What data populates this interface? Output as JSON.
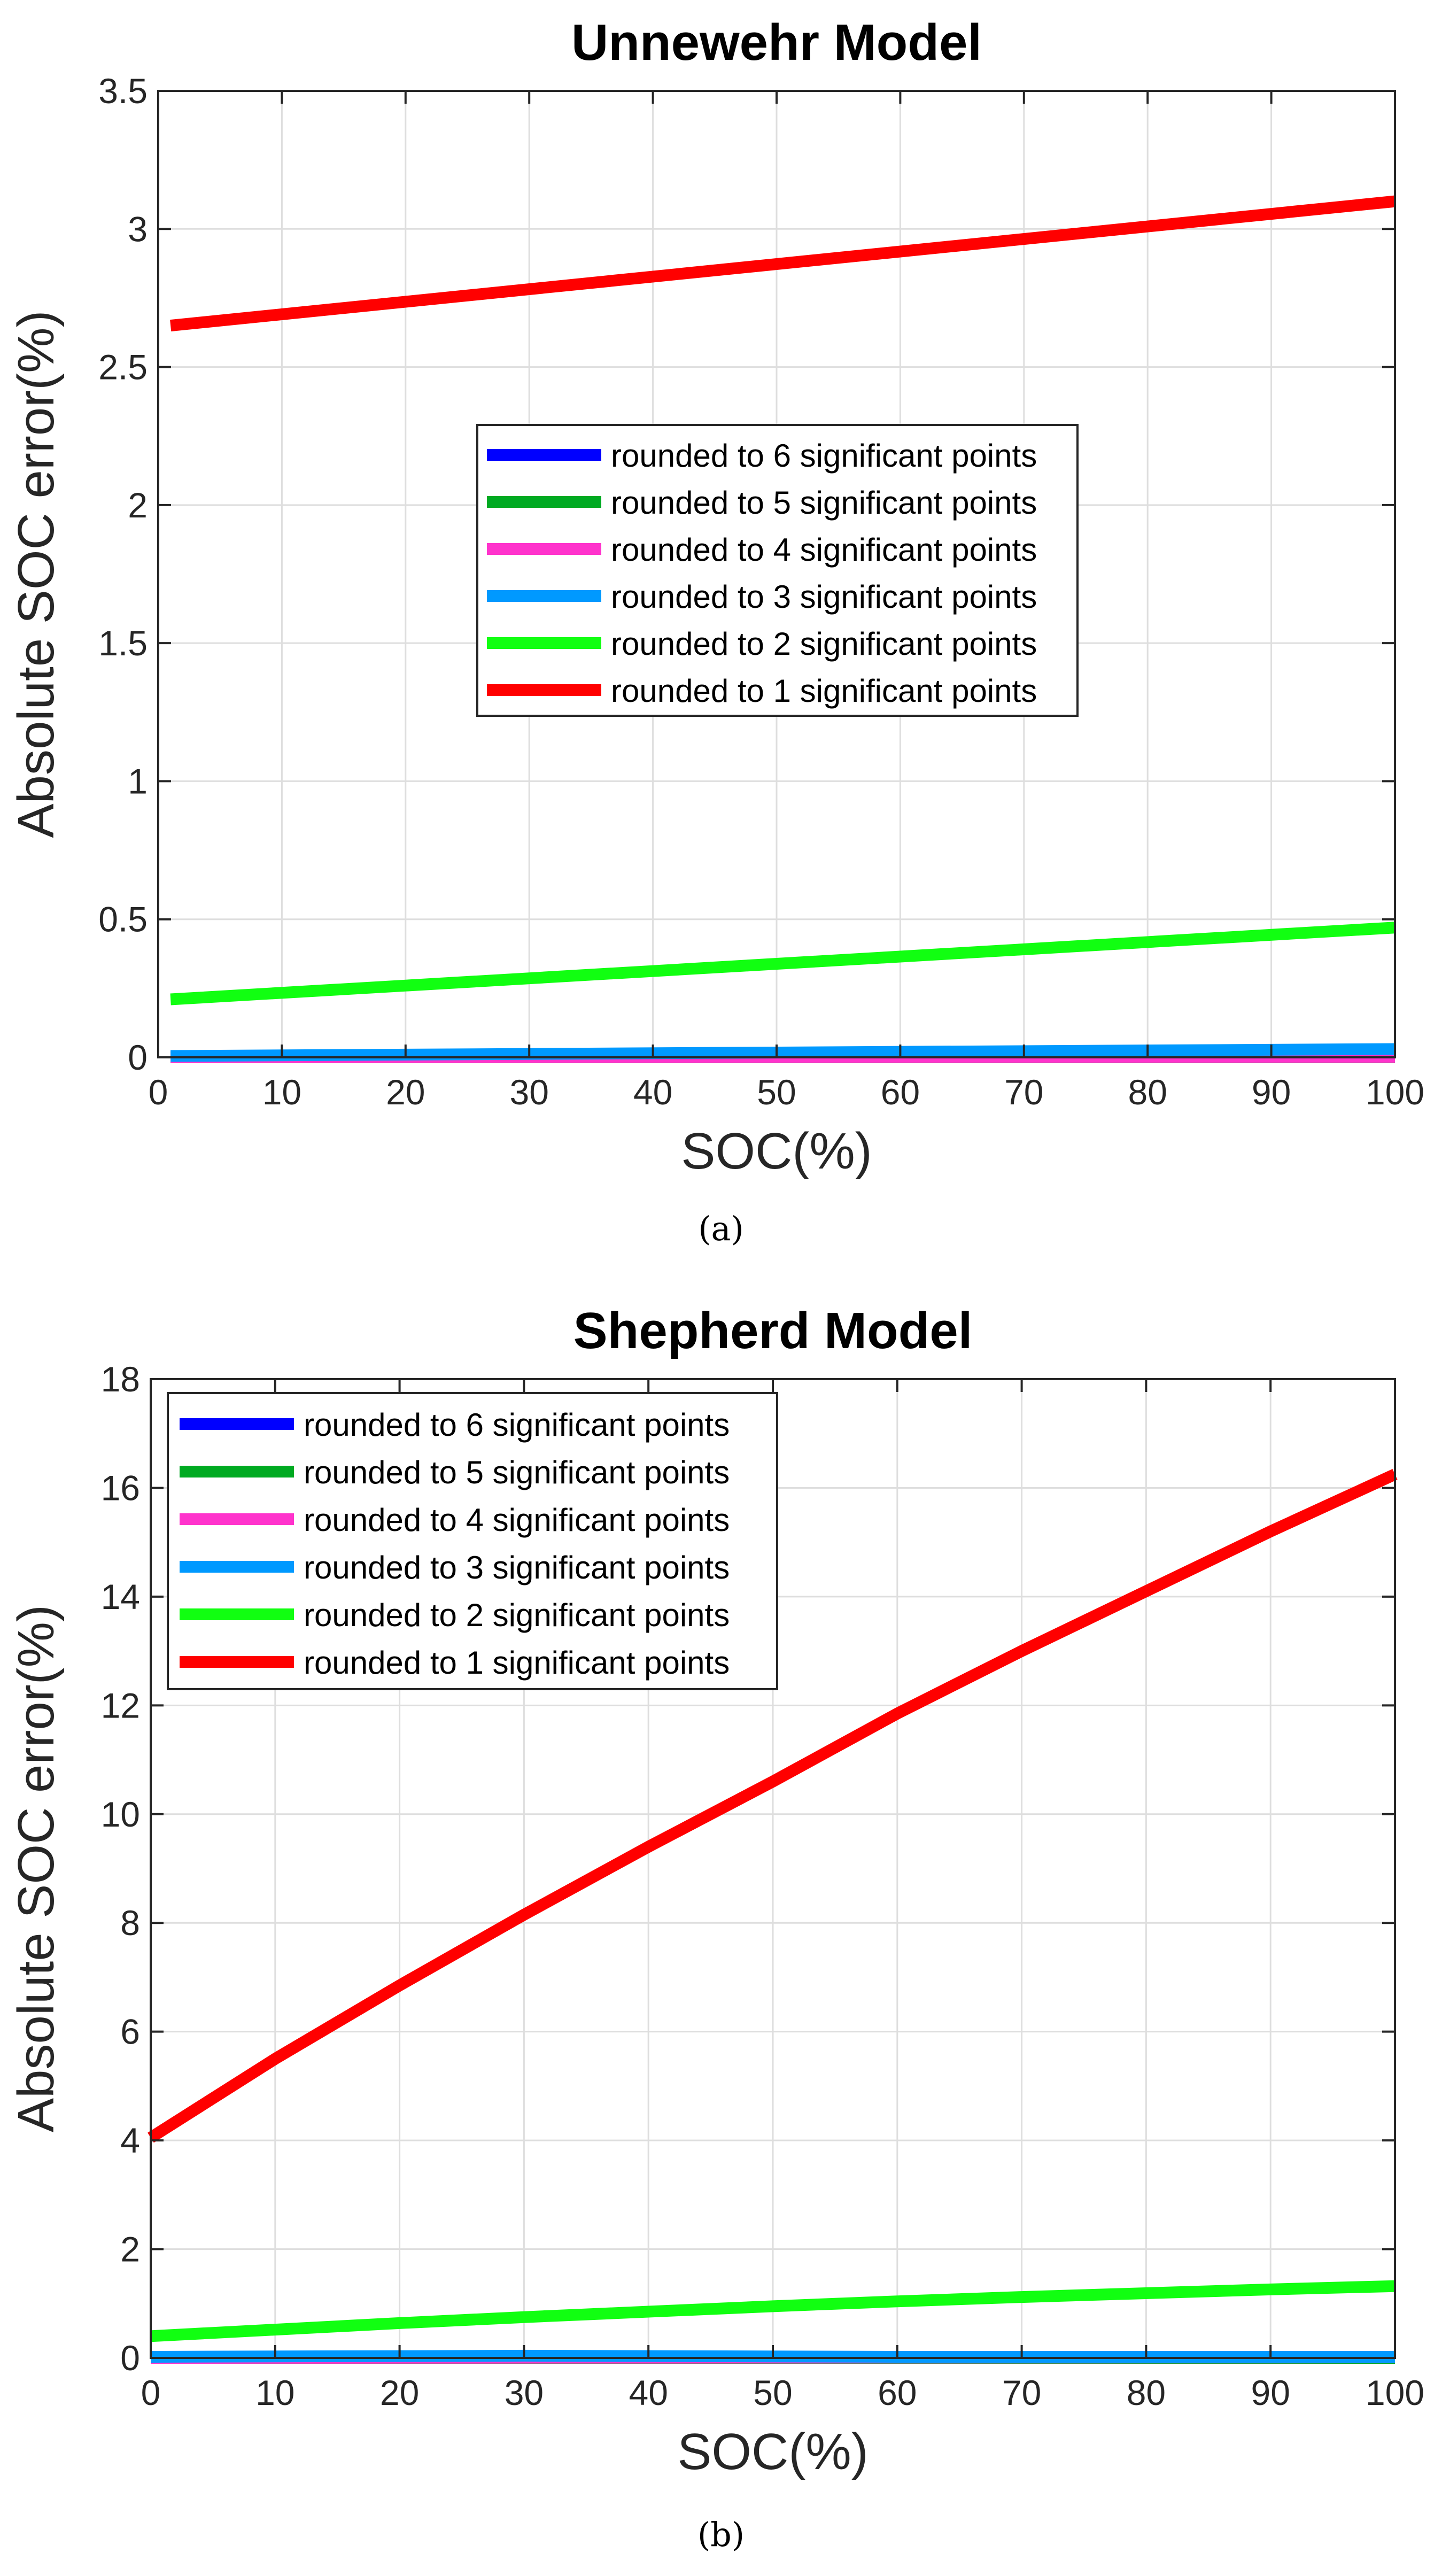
{
  "chart_data": [
    {
      "type": "line",
      "title": "Unnewehr Model",
      "xlabel": "SOC(%)",
      "ylabel": "Absolute SOC error(%)",
      "xlim": [
        0,
        100
      ],
      "ylim": [
        0,
        3.5
      ],
      "xticks": [
        0,
        10,
        20,
        30,
        40,
        50,
        60,
        70,
        80,
        90,
        100
      ],
      "yticks": [
        0,
        0.5,
        1,
        1.5,
        2,
        2.5,
        3,
        3.5
      ],
      "ytick_labels": [
        "0",
        "0.5",
        "1",
        "1.5",
        "2",
        "2.5",
        "3",
        "3.5"
      ],
      "grid": true,
      "legend_position": "center",
      "caption": "(a)",
      "series": [
        {
          "name": "rounded to 6 significant points",
          "color": "#0000ff",
          "x": [
            1,
            100
          ],
          "y": [
            0.0,
            0.0
          ]
        },
        {
          "name": "rounded to 5 significant points",
          "color": "#00aa22",
          "x": [
            1,
            100
          ],
          "y": [
            0.0,
            0.0
          ]
        },
        {
          "name": "rounded to 4 significant points",
          "color": "#ff33cc",
          "x": [
            1,
            100
          ],
          "y": [
            0.0,
            0.002
          ]
        },
        {
          "name": "rounded to 3 significant points",
          "color": "#0099ff",
          "x": [
            1,
            100
          ],
          "y": [
            0.005,
            0.03
          ]
        },
        {
          "name": "rounded to 2 significant points",
          "color": "#11ff11",
          "x": [
            1,
            100
          ],
          "y": [
            0.21,
            0.47
          ]
        },
        {
          "name": "rounded to 1 significant points",
          "color": "#ff0000",
          "x": [
            1,
            100
          ],
          "y": [
            2.65,
            3.1
          ]
        }
      ]
    },
    {
      "type": "line",
      "title": "Shepherd Model",
      "xlabel": "SOC(%)",
      "ylabel": "Absolute SOC error(%)",
      "xlim": [
        0,
        100
      ],
      "ylim": [
        0,
        18
      ],
      "xticks": [
        0,
        10,
        20,
        30,
        40,
        50,
        60,
        70,
        80,
        90,
        100
      ],
      "yticks": [
        0,
        2,
        4,
        6,
        8,
        10,
        12,
        14,
        16,
        18
      ],
      "ytick_labels": [
        "0",
        "2",
        "4",
        "6",
        "8",
        "10",
        "12",
        "14",
        "16",
        "18"
      ],
      "grid": true,
      "legend_position": "top-left",
      "caption": "(b)",
      "series": [
        {
          "name": "rounded to 6 significant points",
          "color": "#0000ff",
          "x": [
            0,
            100
          ],
          "y": [
            0.0,
            0.0
          ]
        },
        {
          "name": "rounded to 5 significant points",
          "color": "#00aa22",
          "x": [
            0,
            100
          ],
          "y": [
            0.0,
            0.0
          ]
        },
        {
          "name": "rounded to 4 significant points",
          "color": "#ff33cc",
          "x": [
            0,
            100
          ],
          "y": [
            0.0,
            0.01
          ]
        },
        {
          "name": "rounded to 3 significant points",
          "color": "#0099ff",
          "x": [
            0,
            30,
            60,
            100
          ],
          "y": [
            0.02,
            0.04,
            0.02,
            0.02
          ]
        },
        {
          "name": "rounded to 2 significant points",
          "color": "#11ff11",
          "x": [
            0,
            10,
            20,
            30,
            40,
            50,
            60,
            70,
            80,
            90,
            100
          ],
          "y": [
            0.4,
            0.52,
            0.64,
            0.75,
            0.85,
            0.95,
            1.04,
            1.12,
            1.19,
            1.26,
            1.32
          ]
        },
        {
          "name": "rounded to 1 significant points",
          "color": "#ff0000",
          "x": [
            0,
            10,
            20,
            30,
            40,
            50,
            60,
            70,
            80,
            90,
            100
          ],
          "y": [
            4.05,
            5.5,
            6.85,
            8.15,
            9.4,
            10.6,
            11.85,
            13.0,
            14.1,
            15.2,
            16.25
          ]
        }
      ]
    }
  ]
}
